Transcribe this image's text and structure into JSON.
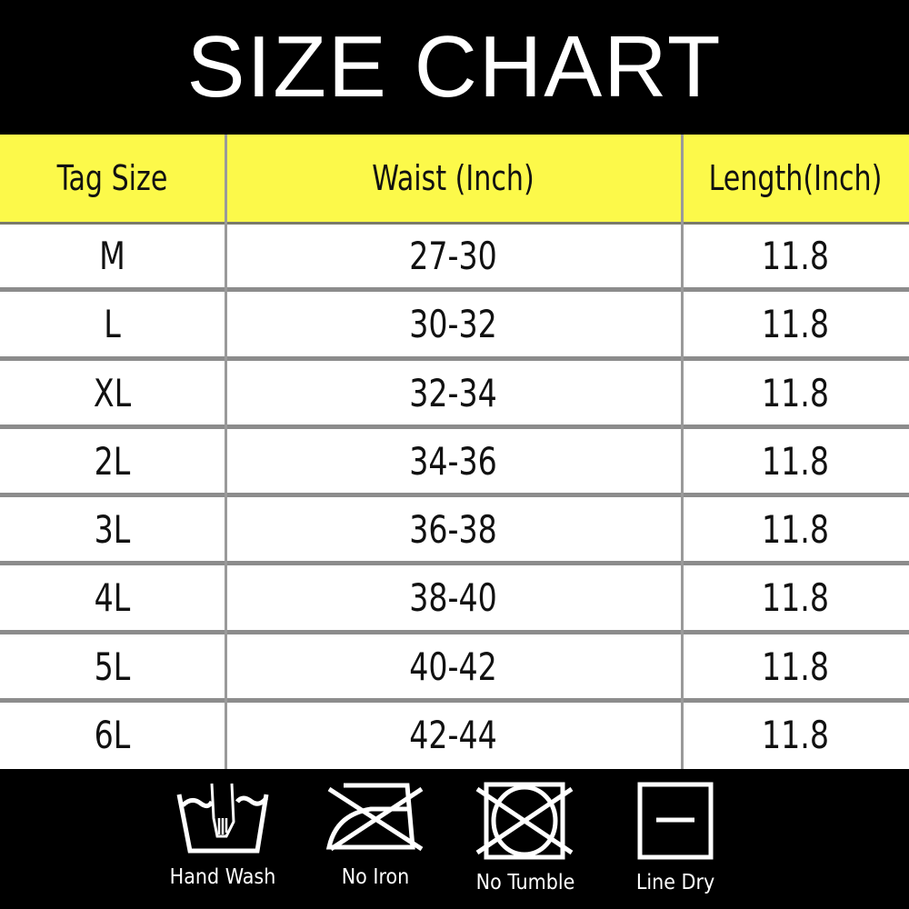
{
  "title": "SIZE CHART",
  "table": {
    "headers": [
      "Tag Size",
      "Waist (Inch)",
      "Length(Inch)"
    ],
    "rows": [
      [
        "M",
        "27-30",
        "11.8"
      ],
      [
        "L",
        "30-32",
        "11.8"
      ],
      [
        "XL",
        "32-34",
        "11.8"
      ],
      [
        "2L",
        "34-36",
        "11.8"
      ],
      [
        "3L",
        "36-38",
        "11.8"
      ],
      [
        "4L",
        "38-40",
        "11.8"
      ],
      [
        "5L",
        "40-42",
        "11.8"
      ],
      [
        "6L",
        "42-44",
        "11.8"
      ]
    ]
  },
  "care": [
    {
      "icon": "hand-wash-icon",
      "label": "Hand Wash"
    },
    {
      "icon": "no-iron-icon",
      "label": "No Iron"
    },
    {
      "icon": "no-tumble-dry-icon",
      "label": "No Tumble"
    },
    {
      "icon": "line-dry-icon",
      "label": "Line Dry"
    }
  ],
  "colors": {
    "header": "#fcf94a",
    "background": "#000000",
    "divider": "#8c8c8c"
  }
}
